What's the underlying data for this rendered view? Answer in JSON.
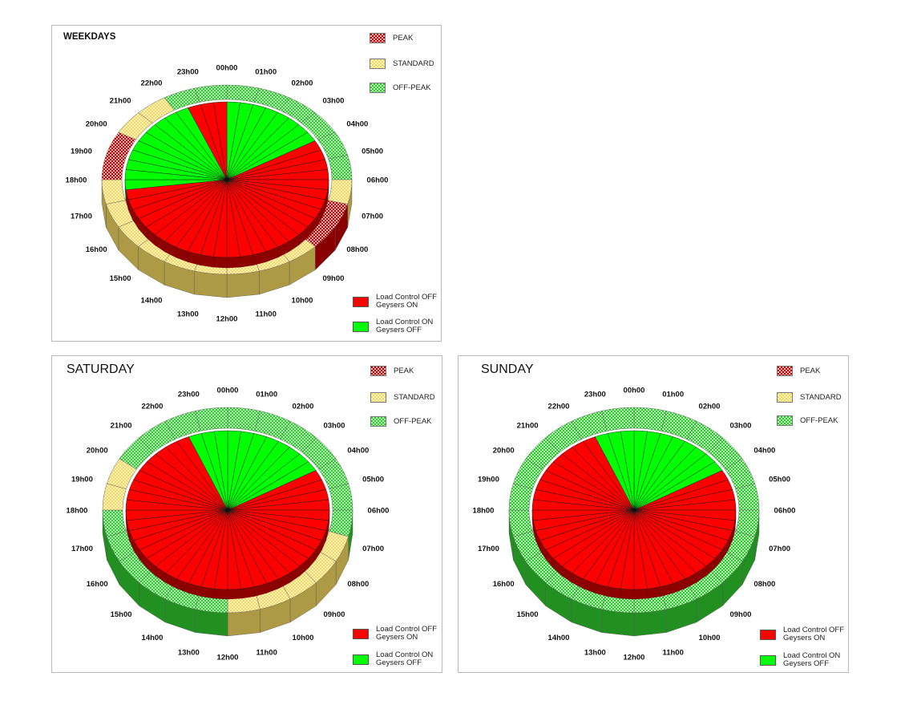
{
  "legend_tariff": {
    "peak": "PEAK",
    "standard": "STANDARD",
    "offpeak": "OFF-PEAK"
  },
  "legend_load": {
    "off_line1": "Load Control OFF",
    "off_line2": "Geysers ON",
    "on_line1": "Load Control ON",
    "on_line2": "Geysers OFF"
  },
  "colors": {
    "peak": "#c00000",
    "standard": "#f2d660",
    "offpeak": "#2ec82e",
    "geysers_on": "#ff0000",
    "geysers_off": "#00ff00"
  },
  "chart_data": [
    {
      "type": "pie",
      "title": "WEEKDAYS",
      "hour_labels": [
        "00h00",
        "01h00",
        "02h00",
        "03h00",
        "04h00",
        "05h00",
        "06h00",
        "07h00",
        "08h00",
        "09h00",
        "10h00",
        "11h00",
        "12h00",
        "13h00",
        "14h00",
        "15h00",
        "16h00",
        "17h00",
        "18h00",
        "19h00",
        "20h00",
        "21h00",
        "22h00",
        "23h00"
      ],
      "tariff_ring": [
        "off-peak",
        "off-peak",
        "off-peak",
        "off-peak",
        "off-peak",
        "off-peak",
        "standard",
        "peak",
        "peak",
        "standard",
        "standard",
        "standard",
        "standard",
        "standard",
        "standard",
        "standard",
        "standard",
        "standard",
        "peak",
        "peak",
        "standard",
        "standard",
        "off-peak",
        "off-peak"
      ],
      "load_control_half_hours": [
        "on",
        "on",
        "on",
        "on",
        "on",
        "on",
        "on",
        "on",
        "off",
        "off",
        "off",
        "off",
        "off",
        "off",
        "off",
        "off",
        "off",
        "off",
        "off",
        "off",
        "off",
        "off",
        "off",
        "off",
        "off",
        "off",
        "off",
        "off",
        "off",
        "off",
        "off",
        "off",
        "off",
        "off",
        "off",
        "on",
        "on",
        "on",
        "on",
        "on",
        "on",
        "on",
        "on",
        "on",
        "on",
        "off",
        "off",
        "off"
      ]
    },
    {
      "type": "pie",
      "title": "SATURDAY",
      "hour_labels": [
        "00h00",
        "01h00",
        "02h00",
        "03h00",
        "04h00",
        "05h00",
        "06h00",
        "07h00",
        "08h00",
        "09h00",
        "10h00",
        "11h00",
        "12h00",
        "13h00",
        "14h00",
        "15h00",
        "16h00",
        "17h00",
        "18h00",
        "19h00",
        "20h00",
        "21h00",
        "22h00",
        "23h00"
      ],
      "tariff_ring": [
        "off-peak",
        "off-peak",
        "off-peak",
        "off-peak",
        "off-peak",
        "off-peak",
        "off-peak",
        "standard",
        "standard",
        "standard",
        "standard",
        "standard",
        "off-peak",
        "off-peak",
        "off-peak",
        "off-peak",
        "off-peak",
        "off-peak",
        "standard",
        "standard",
        "off-peak",
        "off-peak",
        "off-peak",
        "off-peak"
      ],
      "load_control_half_hours": [
        "on",
        "on",
        "on",
        "on",
        "on",
        "on",
        "on",
        "on",
        "off",
        "off",
        "off",
        "off",
        "off",
        "off",
        "off",
        "off",
        "off",
        "off",
        "off",
        "off",
        "off",
        "off",
        "off",
        "off",
        "off",
        "off",
        "off",
        "off",
        "off",
        "off",
        "off",
        "off",
        "off",
        "off",
        "off",
        "off",
        "off",
        "off",
        "off",
        "off",
        "off",
        "off",
        "off",
        "off",
        "off",
        "on",
        "on",
        "on"
      ]
    },
    {
      "type": "pie",
      "title": "SUNDAY",
      "hour_labels": [
        "00h00",
        "01h00",
        "02h00",
        "03h00",
        "04h00",
        "05h00",
        "06h00",
        "07h00",
        "08h00",
        "09h00",
        "10h00",
        "11h00",
        "12h00",
        "13h00",
        "14h00",
        "15h00",
        "16h00",
        "17h00",
        "18h00",
        "19h00",
        "20h00",
        "21h00",
        "22h00",
        "23h00"
      ],
      "tariff_ring": [
        "off-peak",
        "off-peak",
        "off-peak",
        "off-peak",
        "off-peak",
        "off-peak",
        "off-peak",
        "off-peak",
        "off-peak",
        "off-peak",
        "off-peak",
        "off-peak",
        "off-peak",
        "off-peak",
        "off-peak",
        "off-peak",
        "off-peak",
        "off-peak",
        "off-peak",
        "off-peak",
        "off-peak",
        "off-peak",
        "off-peak",
        "off-peak"
      ],
      "load_control_half_hours": [
        "on",
        "on",
        "on",
        "on",
        "on",
        "on",
        "on",
        "on",
        "off",
        "off",
        "off",
        "off",
        "off",
        "off",
        "off",
        "off",
        "off",
        "off",
        "off",
        "off",
        "off",
        "off",
        "off",
        "off",
        "off",
        "off",
        "off",
        "off",
        "off",
        "off",
        "off",
        "off",
        "off",
        "off",
        "off",
        "off",
        "off",
        "off",
        "off",
        "off",
        "off",
        "off",
        "off",
        "off",
        "off",
        "on",
        "on",
        "on"
      ]
    }
  ]
}
